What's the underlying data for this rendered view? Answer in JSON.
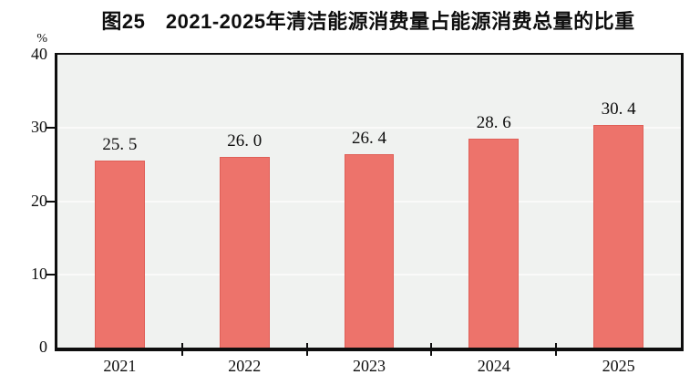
{
  "figure": {
    "title": "图25　2021-2025年清洁能源消费量占能源消费总量的比重",
    "unit_label": "%"
  },
  "colors": {
    "bar_fill": "#ED736B",
    "bar_border": "#DF5F57",
    "plot_bg": "#F0F2F0",
    "grid_line": "#FAFAF9",
    "axis": "#0E0E0E",
    "text": "#0E0E0E"
  },
  "chart_data": {
    "type": "bar",
    "title": "图25　2021-2025年清洁能源消费量占能源消费总量的比重",
    "categories": [
      "2021",
      "2022",
      "2023",
      "2024",
      "2025"
    ],
    "values": [
      25.5,
      26.0,
      26.4,
      28.6,
      30.4
    ],
    "value_labels": [
      "25. 5",
      "26. 0",
      "26. 4",
      "28. 6",
      "30. 4"
    ],
    "xlabel": "",
    "ylabel": "%",
    "ylim": [
      0,
      40
    ],
    "yticks": [
      0,
      10,
      20,
      30,
      40
    ],
    "grid": "horizontal-white-lines-at-10-20-30",
    "legend_position": "none",
    "bar_width_fraction": 0.4
  }
}
